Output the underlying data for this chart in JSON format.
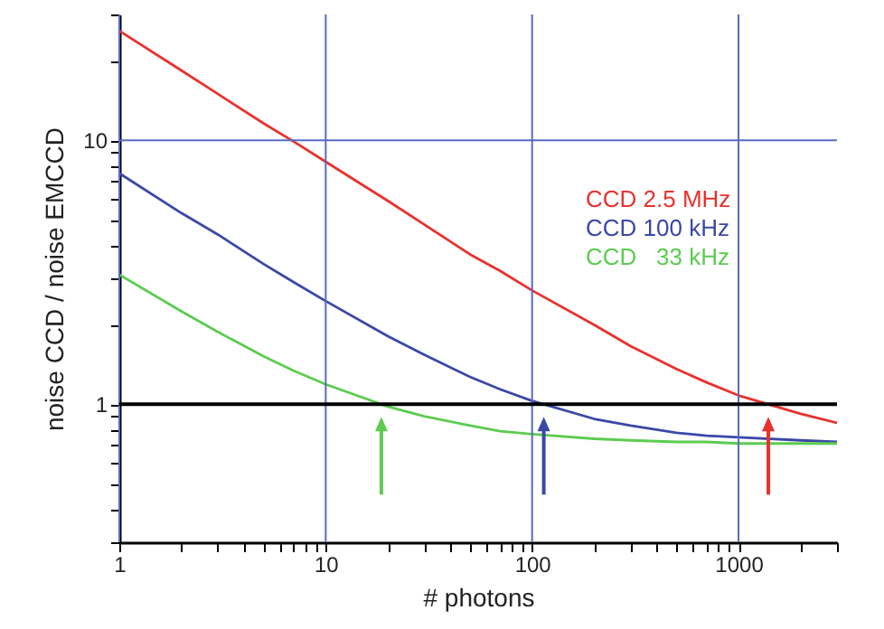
{
  "chart_data": {
    "type": "line",
    "xlabel": "# photons",
    "ylabel": "noise CCD / noise EMCCD",
    "log": "xy",
    "x": [
      1,
      2,
      3,
      5,
      7,
      10,
      20,
      30,
      50,
      70,
      100,
      200,
      300,
      500,
      700,
      1000,
      2000,
      3000
    ],
    "series": [
      {
        "name": "CCD 2.5 MHz",
        "color": "#e8322e",
        "values": [
          26,
          18.4,
          15,
          11.6,
          9.9,
          8.3,
          5.9,
          4.8,
          3.7,
          3.2,
          2.7,
          2.0,
          1.66,
          1.36,
          1.21,
          1.08,
          0.92,
          0.85
        ]
      },
      {
        "name": "CCD 100 kHz",
        "color": "#3a48a8",
        "values": [
          7.5,
          5.3,
          4.4,
          3.4,
          2.9,
          2.46,
          1.81,
          1.54,
          1.27,
          1.14,
          1.03,
          0.88,
          0.83,
          0.78,
          0.76,
          0.75,
          0.73,
          0.72
        ]
      },
      {
        "name": "CCD   33 kHz",
        "color": "#5ccc50",
        "values": [
          3.1,
          2.25,
          1.88,
          1.52,
          1.34,
          1.19,
          0.98,
          0.9,
          0.83,
          0.79,
          0.77,
          0.74,
          0.73,
          0.72,
          0.72,
          0.71,
          0.71,
          0.71
        ]
      }
    ],
    "xlim": [
      1,
      3000
    ],
    "xticks": [
      1,
      {
        "value": 2,
        "label": null
      },
      {
        "value": 3,
        "label": null
      },
      {
        "value": 4,
        "label": null
      },
      {
        "value": 5,
        "label": null
      },
      {
        "value": 6,
        "label": null
      },
      {
        "value": 7,
        "label": null
      },
      {
        "value": 8,
        "label": null
      },
      {
        "value": 9,
        "label": null
      },
      10,
      {
        "value": 20,
        "label": null
      },
      {
        "value": 30,
        "label": null
      },
      {
        "value": 40,
        "label": null
      },
      {
        "value": 50,
        "label": null
      },
      {
        "value": 60,
        "label": null
      },
      {
        "value": 70,
        "label": null
      },
      {
        "value": 80,
        "label": null
      },
      {
        "value": 90,
        "label": null
      },
      100,
      {
        "value": 200,
        "label": null
      },
      {
        "value": 300,
        "label": null
      },
      {
        "value": 400,
        "label": null
      },
      {
        "value": 500,
        "label": null
      },
      {
        "value": 600,
        "label": null
      },
      {
        "value": 700,
        "label": null
      },
      {
        "value": 800,
        "label": null
      },
      {
        "value": 900,
        "label": null
      },
      1000,
      {
        "value": 2000,
        "label": null
      },
      {
        "value": 3000,
        "label": null
      }
    ],
    "ylim": [
      0.3,
      30
    ],
    "yticks": [
      {
        "value": 0.3,
        "label": null
      },
      {
        "value": 0.4,
        "label": null
      },
      {
        "value": 0.5,
        "label": null
      },
      {
        "value": 0.6,
        "label": null
      },
      {
        "value": 0.7,
        "label": null
      },
      {
        "value": 0.8,
        "label": null
      },
      {
        "value": 0.9,
        "label": null
      },
      1,
      {
        "value": 2,
        "label": null
      },
      {
        "value": 3,
        "label": null
      },
      {
        "value": 4,
        "label": null
      },
      {
        "value": 5,
        "label": null
      },
      {
        "value": 6,
        "label": null
      },
      {
        "value": 7,
        "label": null
      },
      {
        "value": 8,
        "label": null
      },
      {
        "value": 9,
        "label": null
      },
      10,
      {
        "value": 20,
        "label": null
      },
      {
        "value": 30,
        "label": null
      }
    ],
    "ref_lines": [
      {
        "axis": "y",
        "value": 1,
        "color": "#000000"
      }
    ],
    "grid": true,
    "legend": "top right",
    "marker": "none",
    "line_style": "solid"
  }
}
